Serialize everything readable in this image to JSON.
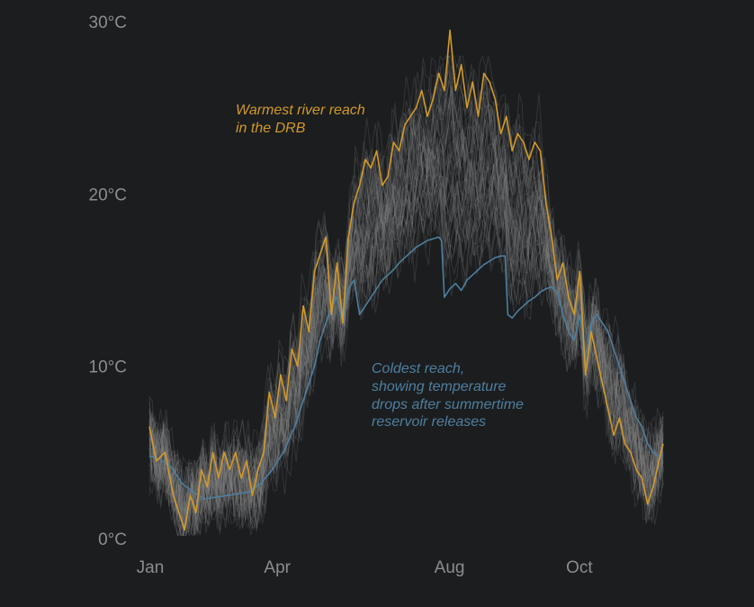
{
  "chart_data": {
    "type": "line",
    "title": "",
    "xlabel": "",
    "ylabel": "",
    "x_unit": "day of year",
    "xlim": [
      1,
      365
    ],
    "ylim": [
      0,
      30
    ],
    "yticks": [
      {
        "value": 0,
        "label": "0°C"
      },
      {
        "value": 10,
        "label": "10°C"
      },
      {
        "value": 20,
        "label": "20°C"
      },
      {
        "value": 30,
        "label": "30°C"
      }
    ],
    "xticks": [
      {
        "value": 1,
        "label": "Jan"
      },
      {
        "value": 91,
        "label": "Apr"
      },
      {
        "value": 213,
        "label": "Aug"
      },
      {
        "value": 305,
        "label": "Oct"
      }
    ],
    "grid": false,
    "legend": "none",
    "colors": {
      "background": "#1b1d1f",
      "warmest": "#d29a2b",
      "coldest": "#4f7f9e",
      "other_reaches": "#8a8a8a",
      "tick_text": "#8b8e91"
    },
    "background_series_description_count": 50,
    "series": [
      {
        "role": "warmest",
        "x": [
          1,
          6,
          12,
          18,
          22,
          26,
          30,
          34,
          38,
          42,
          46,
          50,
          54,
          58,
          62,
          66,
          70,
          74,
          78,
          82,
          86,
          90,
          94,
          98,
          102,
          106,
          110,
          114,
          118,
          122,
          126,
          130,
          134,
          138,
          142,
          146,
          150,
          154,
          158,
          162,
          166,
          170,
          174,
          178,
          182,
          186,
          190,
          194,
          198,
          202,
          206,
          210,
          214,
          218,
          222,
          226,
          230,
          234,
          238,
          242,
          246,
          250,
          254,
          258,
          262,
          266,
          270,
          274,
          278,
          282,
          286,
          290,
          294,
          298,
          302,
          306,
          310,
          314,
          318,
          322,
          326,
          330,
          334,
          338,
          342,
          346,
          350,
          354,
          358,
          362,
          365
        ],
        "y": [
          6.5,
          4.5,
          5.0,
          2.5,
          1.5,
          0.5,
          2.5,
          1.5,
          4.0,
          3.0,
          5.0,
          3.5,
          5.0,
          4.0,
          5.0,
          3.5,
          4.5,
          2.5,
          4.0,
          5.0,
          8.5,
          7.0,
          9.5,
          8.0,
          11.0,
          10.0,
          13.5,
          12.0,
          15.5,
          16.5,
          17.5,
          13.0,
          16.0,
          12.5,
          17.5,
          19.5,
          20.5,
          22.0,
          21.5,
          22.5,
          20.5,
          21.0,
          23.0,
          22.5,
          24.0,
          24.5,
          25.0,
          26.0,
          24.5,
          25.5,
          27.0,
          26.0,
          29.5,
          26.0,
          27.5,
          25.0,
          26.5,
          24.5,
          27.0,
          26.5,
          25.5,
          23.5,
          24.5,
          22.5,
          23.5,
          23.0,
          22.0,
          23.0,
          22.5,
          19.5,
          17.5,
          15.0,
          16.0,
          14.0,
          13.0,
          15.5,
          9.5,
          12.0,
          10.5,
          9.0,
          7.5,
          6.0,
          7.0,
          5.5,
          5.0,
          4.0,
          3.5,
          2.0,
          3.0,
          4.5,
          5.5
        ]
      },
      {
        "role": "coldest",
        "x": [
          1,
          8,
          16,
          24,
          32,
          40,
          48,
          56,
          64,
          72,
          80,
          88,
          96,
          104,
          110,
          114,
          118,
          122,
          126,
          130,
          134,
          138,
          142,
          146,
          150,
          154,
          158,
          162,
          166,
          170,
          174,
          178,
          182,
          186,
          190,
          194,
          198,
          202,
          206,
          208,
          210,
          214,
          218,
          222,
          226,
          230,
          234,
          238,
          242,
          246,
          250,
          253,
          255,
          258,
          262,
          266,
          270,
          274,
          278,
          282,
          286,
          290,
          294,
          298,
          302,
          306,
          310,
          314,
          318,
          322,
          326,
          330,
          334,
          338,
          342,
          346,
          350,
          354,
          358,
          362,
          365
        ],
        "y": [
          4.8,
          4.6,
          4.2,
          3.2,
          2.7,
          2.3,
          2.4,
          2.5,
          2.6,
          2.7,
          3.2,
          4.0,
          5.0,
          6.5,
          8.0,
          9.0,
          10.0,
          11.5,
          12.5,
          13.5,
          14.0,
          12.5,
          14.5,
          15.0,
          13.0,
          13.5,
          14.0,
          14.5,
          15.0,
          15.3,
          15.6,
          16.0,
          16.3,
          16.6,
          16.9,
          17.1,
          17.3,
          17.4,
          17.5,
          17.3,
          14.0,
          14.5,
          14.8,
          14.4,
          15.0,
          15.3,
          15.6,
          15.9,
          16.1,
          16.3,
          16.4,
          16.4,
          13.0,
          12.8,
          13.2,
          13.5,
          13.8,
          14.0,
          14.3,
          14.5,
          14.6,
          14.3,
          13.0,
          12.0,
          11.5,
          13.0,
          10.5,
          12.5,
          13.0,
          12.5,
          12.0,
          11.0,
          10.0,
          9.0,
          8.0,
          7.0,
          6.5,
          5.5,
          5.0,
          4.8,
          4.8
        ]
      }
    ],
    "annotations": [
      {
        "series": "warmest",
        "lines": [
          "Warmest river reach",
          "in the DRB"
        ]
      },
      {
        "series": "coldest",
        "lines": [
          "Coldest reach,",
          "showing temperature",
          "drops after summertime",
          "reservoir releases"
        ]
      }
    ]
  }
}
